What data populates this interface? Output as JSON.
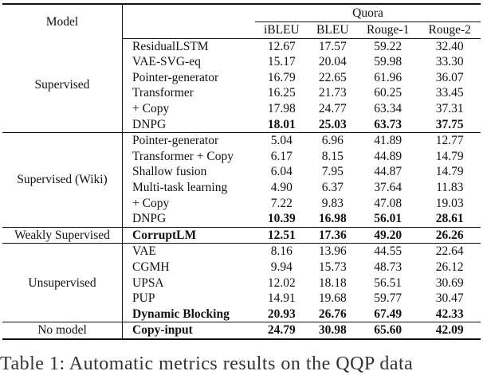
{
  "table": {
    "model_header": "Model",
    "dataset_header": "Quora",
    "columns": [
      "iBLEU",
      "BLEU",
      "Rouge-1",
      "Rouge-2"
    ],
    "groups": [
      {
        "name": "Supervised",
        "rows": [
          {
            "method": "ResidualLSTM",
            "values": [
              "12.67",
              "17.57",
              "59.22",
              "32.40"
            ],
            "bold": [
              false,
              false,
              false,
              false
            ],
            "method_bold": false
          },
          {
            "method": "VAE-SVG-eq",
            "values": [
              "15.17",
              "20.04",
              "59.98",
              "33.30"
            ],
            "bold": [
              false,
              false,
              false,
              false
            ],
            "method_bold": false
          },
          {
            "method": "Pointer-generator",
            "values": [
              "16.79",
              "22.65",
              "61.96",
              "36.07"
            ],
            "bold": [
              false,
              false,
              false,
              false
            ],
            "method_bold": false
          },
          {
            "method": "Transformer",
            "values": [
              "16.25",
              "21.73",
              "60.25",
              "33.45"
            ],
            "bold": [
              false,
              false,
              false,
              false
            ],
            "method_bold": false
          },
          {
            "method": "+ Copy",
            "values": [
              "17.98",
              "24.77",
              "63.34",
              "37.31"
            ],
            "bold": [
              false,
              false,
              false,
              false
            ],
            "method_bold": false
          },
          {
            "method": "DNPG",
            "values": [
              "18.01",
              "25.03",
              "63.73",
              "37.75"
            ],
            "bold": [
              true,
              true,
              true,
              true
            ],
            "method_bold": false
          }
        ]
      },
      {
        "name": "Supervised (Wiki)",
        "rows": [
          {
            "method": "Pointer-generator",
            "values": [
              "5.04",
              "6.96",
              "41.89",
              "12.77"
            ],
            "bold": [
              false,
              false,
              false,
              false
            ],
            "method_bold": false
          },
          {
            "method": "Transformer + Copy",
            "values": [
              "6.17",
              "8.15",
              "44.89",
              "14.79"
            ],
            "bold": [
              false,
              false,
              false,
              false
            ],
            "method_bold": false
          },
          {
            "method": "Shallow fusion",
            "values": [
              "6.04",
              "7.95",
              "44.87",
              "14.79"
            ],
            "bold": [
              false,
              false,
              false,
              false
            ],
            "method_bold": false
          },
          {
            "method": "Multi-task learning",
            "values": [
              "4.90",
              "6.37",
              "37.64",
              "11.83"
            ],
            "bold": [
              false,
              false,
              false,
              false
            ],
            "method_bold": false
          },
          {
            "method": "+ Copy",
            "values": [
              "7.22",
              "9.83",
              "47.08",
              "19.03"
            ],
            "bold": [
              false,
              false,
              false,
              false
            ],
            "method_bold": false
          },
          {
            "method": "DNPG",
            "values": [
              "10.39",
              "16.98",
              "56.01",
              "28.61"
            ],
            "bold": [
              true,
              true,
              true,
              true
            ],
            "method_bold": false
          }
        ]
      },
      {
        "name": "Weakly Supervised",
        "rows": [
          {
            "method": "CorruptLM",
            "values": [
              "12.51",
              "17.36",
              "49.20",
              "26.26"
            ],
            "bold": [
              true,
              true,
              true,
              true
            ],
            "method_bold": true
          }
        ]
      },
      {
        "name": "Unsupervised",
        "rows": [
          {
            "method": "VAE",
            "values": [
              "8.16",
              "13.96",
              "44.55",
              "22.64"
            ],
            "bold": [
              false,
              false,
              false,
              false
            ],
            "method_bold": false
          },
          {
            "method": "CGMH",
            "values": [
              "9.94",
              "15.73",
              "48.73",
              "26.12"
            ],
            "bold": [
              false,
              false,
              false,
              false
            ],
            "method_bold": false
          },
          {
            "method": "UPSA",
            "values": [
              "12.02",
              "18.18",
              "56.51",
              "30.69"
            ],
            "bold": [
              false,
              false,
              false,
              false
            ],
            "method_bold": false
          },
          {
            "method": "PUP",
            "values": [
              "14.91",
              "19.68",
              "59.77",
              "30.47"
            ],
            "bold": [
              false,
              false,
              false,
              false
            ],
            "method_bold": false
          },
          {
            "method": "Dynamic Blocking",
            "values": [
              "20.93",
              "26.76",
              "67.49",
              "42.33"
            ],
            "bold": [
              true,
              true,
              true,
              true
            ],
            "method_bold": true
          }
        ]
      },
      {
        "name": "No model",
        "rows": [
          {
            "method": "Copy-input",
            "values": [
              "24.79",
              "30.98",
              "65.60",
              "42.09"
            ],
            "bold": [
              true,
              true,
              true,
              true
            ],
            "method_bold": true
          }
        ]
      }
    ]
  },
  "caption": "Table 1: Automatic metrics results on the QQP data"
}
